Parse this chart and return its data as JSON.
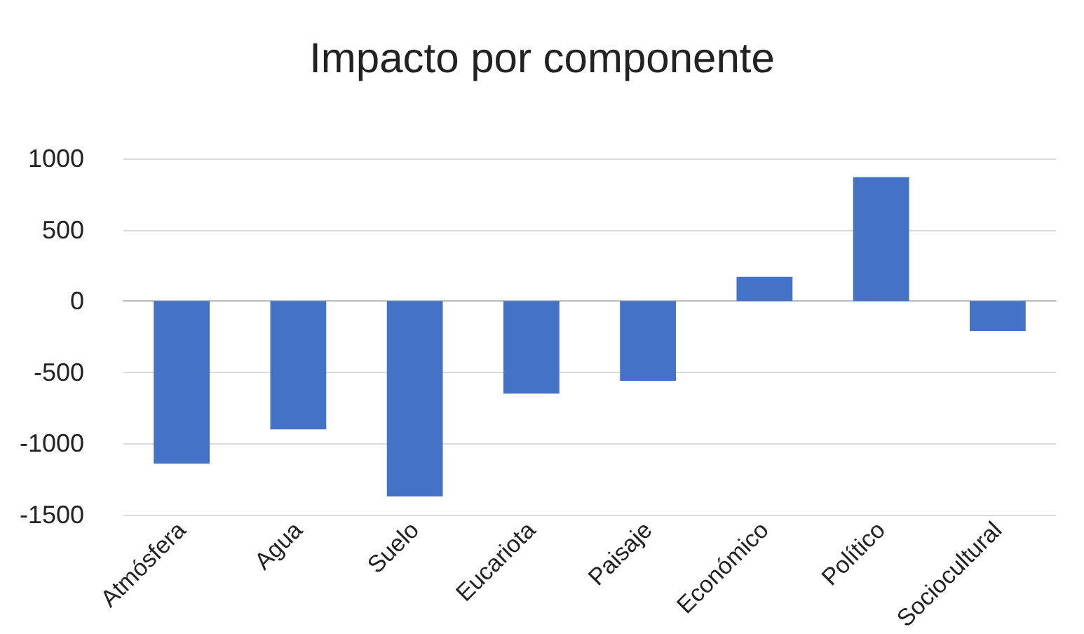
{
  "chart_data": {
    "type": "bar",
    "title": "Impacto por componente",
    "categories": [
      "Atmósfera",
      "Agua",
      "Suelo",
      "Eucariota",
      "Paisaje",
      "Económico",
      "Político",
      "Sociocultural"
    ],
    "values": [
      -1140,
      -900,
      -1370,
      -650,
      -560,
      170,
      870,
      -210
    ],
    "color": "#4472c4",
    "ylim": [
      -1500,
      1000
    ],
    "yticks": [
      -1500,
      -1000,
      -500,
      0,
      500,
      1000
    ],
    "grid": "y"
  }
}
